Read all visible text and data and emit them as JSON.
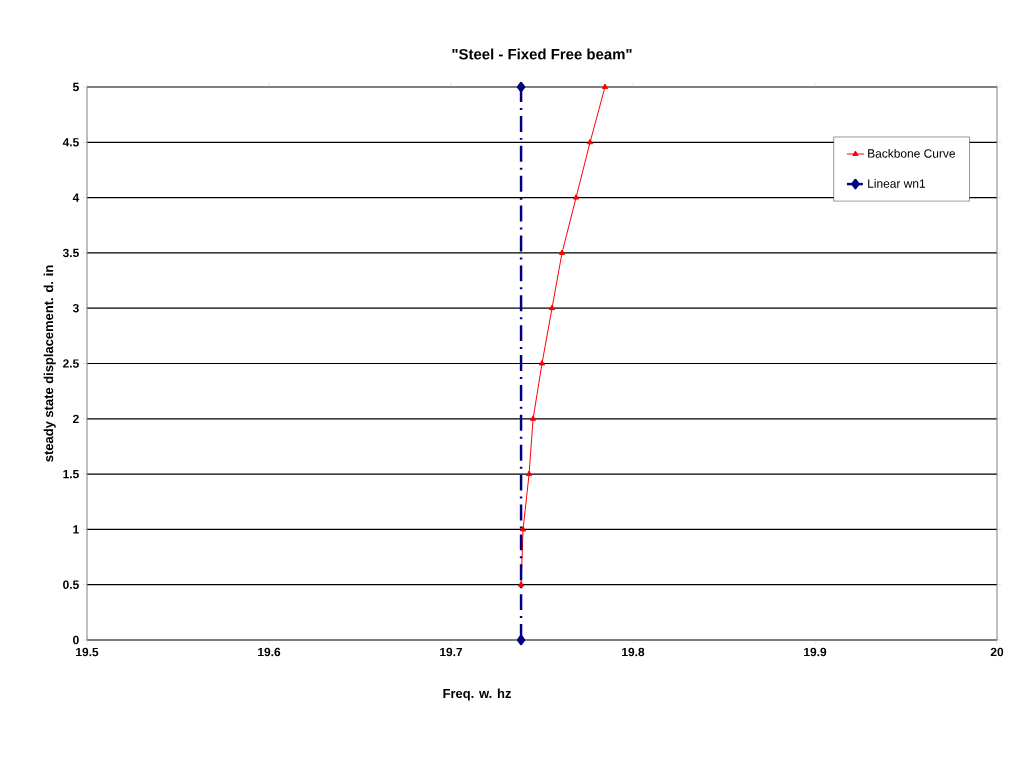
{
  "chart_data": {
    "type": "line",
    "title": "\"Steel - Fixed Free beam\"",
    "xlabel": "Freq. w. hz",
    "ylabel": "steady state displacement. d. in",
    "xlim": [
      19.5,
      20
    ],
    "xticks": [
      19.5,
      19.6,
      19.7,
      19.8,
      19.9,
      20
    ],
    "ylim": [
      0,
      5
    ],
    "yticks": [
      0,
      0.5,
      1,
      1.5,
      2,
      2.5,
      3,
      3.5,
      4,
      4.5,
      5
    ],
    "grid": "y",
    "legend": "top right",
    "series": [
      {
        "name": "Backbone Curve",
        "color": "#ff0000",
        "marker": "triangle",
        "line_style": "solid",
        "x": [
          19.7385,
          19.7396,
          19.7429,
          19.7451,
          19.75,
          19.7555,
          19.761,
          19.7687,
          19.7764,
          19.7846
        ],
        "values": [
          0.5,
          1,
          1.5,
          2,
          2.5,
          3,
          3.5,
          4,
          4.5,
          5
        ]
      },
      {
        "name": "Linear wn1",
        "color": "#000080",
        "marker": "diamond",
        "line_style": "dashdotted",
        "x": [
          19.7385,
          19.7385
        ],
        "values": [
          0,
          5
        ]
      }
    ]
  }
}
